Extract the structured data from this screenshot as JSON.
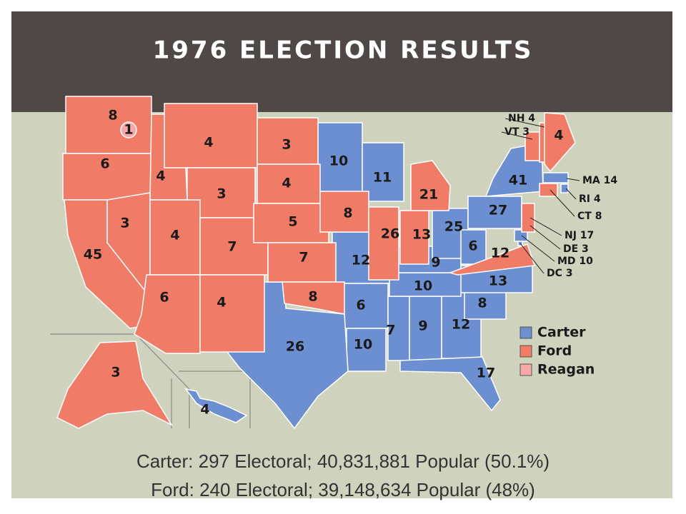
{
  "header": {
    "title": "1976 ELECTION RESULTS"
  },
  "map": {
    "legend": [
      {
        "name": "Carter",
        "color": "#6b8fd1",
        "states": [
          "10",
          "11",
          "12",
          "6",
          "10",
          "26",
          "7",
          "9",
          "12",
          "17",
          "8",
          "13",
          "10",
          "9",
          "25",
          "6",
          "27",
          "41",
          "MA 14",
          "RI 4",
          "DE 3",
          "MD 10",
          "DC 3",
          "4"
        ]
      },
      {
        "name": "Ford",
        "color": "#f07c68",
        "states": [
          "8",
          "6",
          "45",
          "3",
          "4",
          "4",
          "3",
          "4",
          "7",
          "6",
          "4",
          "3",
          "4",
          "5",
          "7",
          "8",
          "8",
          "26",
          "13",
          "21",
          "VT 3",
          "NH 4",
          "4",
          "CT 8",
          "NJ 17",
          "12",
          "3"
        ]
      },
      {
        "name": "Reagan",
        "color": "#f6a9a8",
        "states": [
          "1"
        ]
      }
    ]
  },
  "footer": {
    "lines": [
      "Carter: 297 Electoral; 40,831,881 Popular (50.1%)",
      "Ford: 240 Electoral; 39,148,634 Popular (48%)"
    ]
  }
}
